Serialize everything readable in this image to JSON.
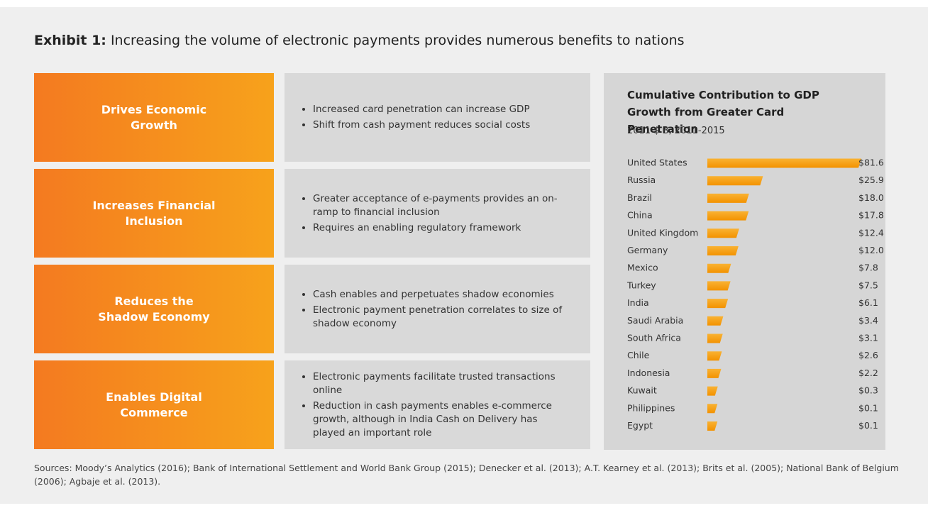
{
  "header": {
    "label": "Exhibit 1:",
    "title": "Increasing the volume of electronic payments provides numerous benefits to nations"
  },
  "rows": [
    {
      "label": "Drives Economic Growth",
      "bullets": [
        "Increased card penetration can increase GDP",
        "Shift from cash payment reduces social costs"
      ]
    },
    {
      "label": "Increases Financial Inclusion",
      "bullets": [
        "Greater acceptance of e-payments provides an on-ramp to financial inclusion",
        "Requires an enabling regulatory framework"
      ]
    },
    {
      "label": "Reduces the Shadow Economy",
      "bullets": [
        "Cash enables and perpetuates shadow economies",
        "Electronic payment penetration correlates to size of shadow economy"
      ]
    },
    {
      "label": "Enables Digital Commerce",
      "bullets": [
        "Electronic payments facilitate trusted transactions online",
        "Reduction in cash payments enables e-commerce growth, although in India Cash on Delivery has played an important role"
      ]
    }
  ],
  "chart_data": {
    "type": "bar",
    "orientation": "horizontal",
    "title": "Cumulative Contribution to GDP Growth from Greater Card Penetration",
    "subtitle": "2011 $ B, 2011-2015",
    "categories": [
      "United States",
      "Russia",
      "Brazil",
      "China",
      "United Kingdom",
      "Germany",
      "Mexico",
      "Turkey",
      "India",
      "Saudi Arabia",
      "South Africa",
      "Chile",
      "Indonesia",
      "Kuwait",
      "Philippines",
      "Egypt"
    ],
    "values": [
      81.6,
      25.9,
      18.0,
      17.8,
      12.4,
      12.0,
      7.8,
      7.5,
      6.1,
      3.4,
      3.1,
      2.6,
      2.2,
      0.3,
      0.1,
      0.1
    ],
    "value_labels": [
      "$81.6",
      "$25.9",
      "$18.0",
      "$17.8",
      "$12.4",
      "$12.0",
      "$7.8",
      "$7.5",
      "$6.1",
      "$3.4",
      "$3.1",
      "$2.6",
      "$2.2",
      "$0.3",
      "$0.1",
      "$0.1"
    ],
    "color": "#f7a21b"
  },
  "sources": "Sources: Moody’s Analytics (2016); Bank of International Settlement and World Bank Group (2015); Denecker et al. (2013); A.T. Kearney et al. (2013); Brits et al. (2005); National Bank of Belgium (2006); Agbaje et al. (2013)."
}
